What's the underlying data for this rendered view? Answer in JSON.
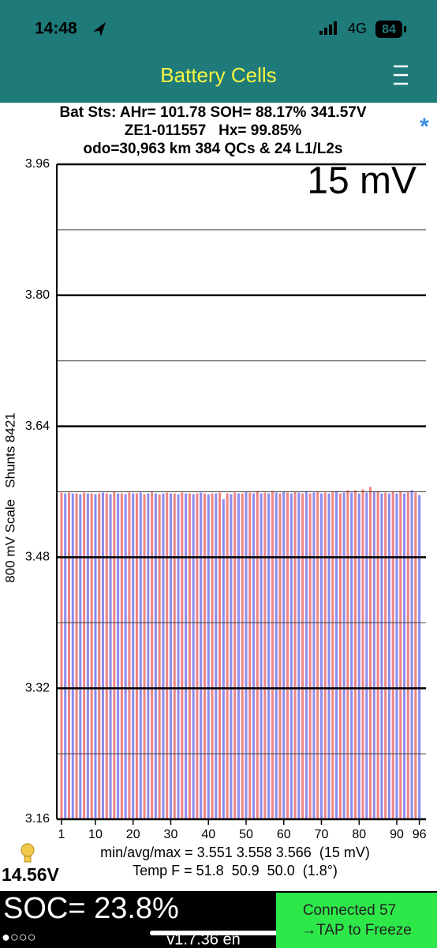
{
  "status_bar": {
    "time": "14:48",
    "network": "4G",
    "battery": "84"
  },
  "header": {
    "title": "Battery Cells"
  },
  "summary": [
    "Bat Sts: AHr= 101.78 SOH= 88.17% 341.57V",
    "ZE1-011557   Hx= 99.85%",
    "odo=30,963 km 384 QCs & 24 L1/L2s"
  ],
  "chart_data": {
    "type": "bar",
    "annotation": "15 mV",
    "ylabel": "800 mV Scale   Shunts 8421",
    "x": [
      1,
      2,
      3,
      4,
      5,
      6,
      7,
      8,
      9,
      10,
      11,
      12,
      13,
      14,
      15,
      16,
      17,
      18,
      19,
      20,
      21,
      22,
      23,
      24,
      25,
      26,
      27,
      28,
      29,
      30,
      31,
      32,
      33,
      34,
      35,
      36,
      37,
      38,
      39,
      40,
      41,
      42,
      43,
      44,
      45,
      46,
      47,
      48,
      49,
      50,
      51,
      52,
      53,
      54,
      55,
      56,
      57,
      58,
      59,
      60,
      61,
      62,
      63,
      64,
      65,
      66,
      67,
      68,
      69,
      70,
      71,
      72,
      73,
      74,
      75,
      76,
      77,
      78,
      79,
      80,
      81,
      82,
      83,
      84,
      85,
      86,
      87,
      88,
      89,
      90,
      91,
      92,
      93,
      94,
      95,
      96
    ],
    "values": [
      3.559,
      3.558,
      3.559,
      3.558,
      3.558,
      3.557,
      3.559,
      3.558,
      3.558,
      3.557,
      3.558,
      3.559,
      3.558,
      3.557,
      3.56,
      3.558,
      3.558,
      3.557,
      3.559,
      3.558,
      3.558,
      3.559,
      3.557,
      3.558,
      3.56,
      3.558,
      3.557,
      3.558,
      3.559,
      3.558,
      3.558,
      3.557,
      3.559,
      3.558,
      3.558,
      3.557,
      3.558,
      3.559,
      3.558,
      3.557,
      3.558,
      3.558,
      3.559,
      3.551,
      3.558,
      3.557,
      3.559,
      3.558,
      3.558,
      3.56,
      3.559,
      3.558,
      3.561,
      3.558,
      3.559,
      3.558,
      3.561,
      3.559,
      3.558,
      3.56,
      3.559,
      3.558,
      3.56,
      3.559,
      3.558,
      3.561,
      3.558,
      3.559,
      3.56,
      3.558,
      3.559,
      3.558,
      3.56,
      3.561,
      3.558,
      3.559,
      3.562,
      3.559,
      3.562,
      3.558,
      3.563,
      3.559,
      3.566,
      3.56,
      3.561,
      3.558,
      3.559,
      3.558,
      3.56,
      3.558,
      3.561,
      3.558,
      3.56,
      3.562,
      3.559,
      3.556
    ],
    "bar_colors": [
      "#ef8585",
      "#8c8cf0"
    ],
    "xlim": [
      -0.25,
      97.75
    ],
    "xticks": [
      1,
      10,
      20,
      30,
      40,
      50,
      60,
      70,
      80,
      90,
      96
    ],
    "ylim": [
      3.16,
      3.96
    ],
    "yticks": [
      3.16,
      3.32,
      3.48,
      3.64,
      {
        "value": 3.8,
        "label": "3.80"
      },
      3.96
    ],
    "minor_yticks": [
      3.24,
      3.4,
      3.56,
      3.72,
      3.88
    ],
    "grid": true
  },
  "stats": [
    "min/avg/max = 3.551 3.558 3.566  (15 mV)",
    "Temp F = 51.8  50.9  50.0  (1.8°)"
  ],
  "pack_voltage": "14.56V",
  "footer": {
    "soc": "SOC= 23.8%",
    "pages": "●○○○",
    "version": "v1.7.36 en",
    "status": [
      "Connected 57",
      "→TAP to Freeze"
    ]
  }
}
